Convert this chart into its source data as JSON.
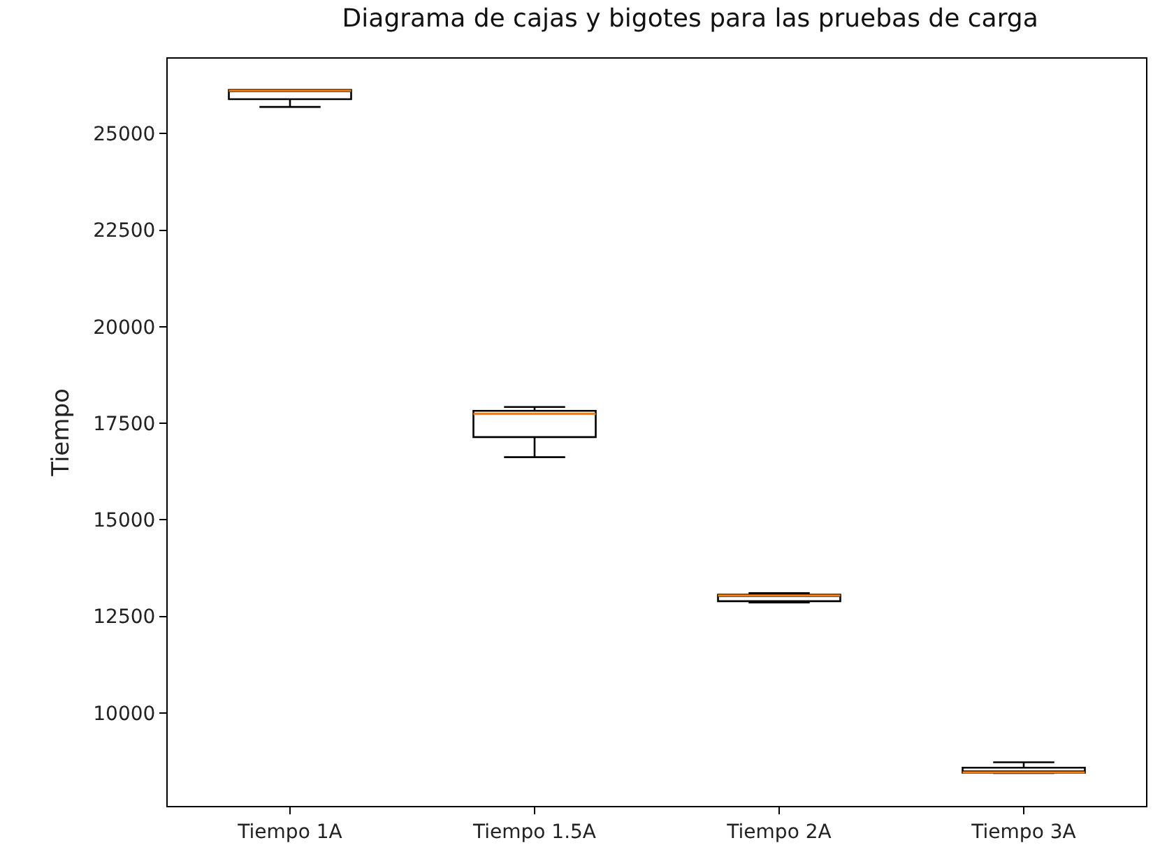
{
  "chart_data": {
    "type": "box",
    "title": "Diagrama de cajas y bigotes para las pruebas de carga",
    "ylabel": "Tiempo",
    "categories": [
      "Tiempo 1A",
      "Tiempo 1.5A",
      "Tiempo 2A",
      "Tiempo 3A"
    ],
    "boxes": [
      {
        "low": 25690,
        "q1": 25890,
        "median": 26110,
        "q3": 26130,
        "high": 26130
      },
      {
        "low": 16620,
        "q1": 17140,
        "median": 17740,
        "q3": 17820,
        "high": 17920
      },
      {
        "low": 12860,
        "q1": 12890,
        "median": 13040,
        "q3": 13060,
        "high": 13100
      },
      {
        "low": 8440,
        "q1": 8450,
        "median": 8460,
        "q3": 8580,
        "high": 8720
      }
    ],
    "color": "#000000",
    "ylim": [
      7590,
      26940
    ],
    "yticks": [
      10000,
      12500,
      15000,
      17500,
      20000,
      22500,
      25000
    ],
    "grid": false
  }
}
